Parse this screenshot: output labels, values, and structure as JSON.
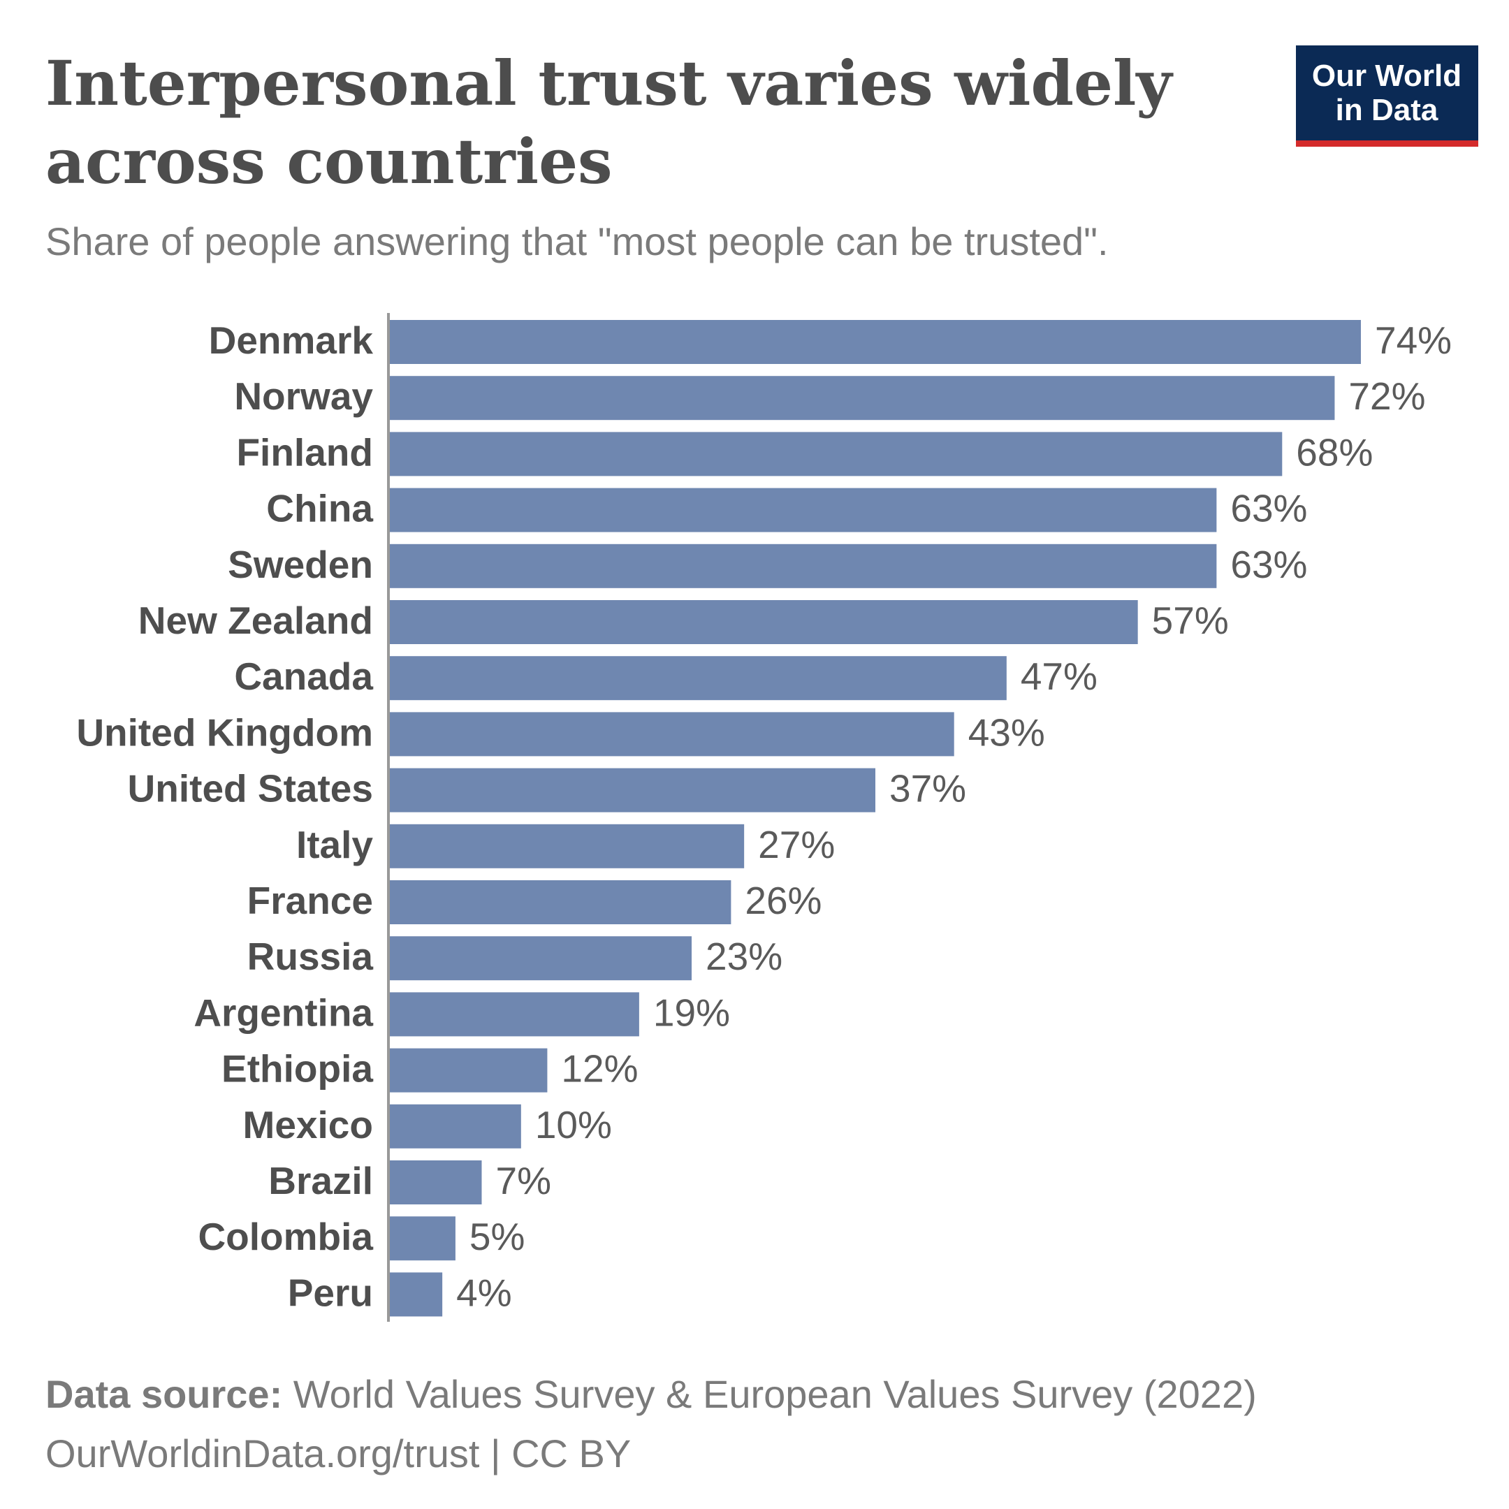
{
  "chart_data": {
    "type": "bar",
    "orientation": "horizontal",
    "title": [
      "Interpersonal trust varies widely",
      "across countries"
    ],
    "subtitle": "Share of people answering that \"most people can be trusted\".",
    "logo": [
      "Our World",
      "in Data"
    ],
    "categories": [
      "Denmark",
      "Norway",
      "Finland",
      "China",
      "Sweden",
      "New Zealand",
      "Canada",
      "United Kingdom",
      "United States",
      "Italy",
      "France",
      "Russia",
      "Argentina",
      "Ethiopia",
      "Mexico",
      "Brazil",
      "Colombia",
      "Peru"
    ],
    "values": [
      74,
      72,
      68,
      63,
      63,
      57,
      47,
      43,
      37,
      27,
      26,
      23,
      19,
      12,
      10,
      7,
      5,
      4
    ],
    "value_labels": [
      "74%",
      "72%",
      "68%",
      "63%",
      "63%",
      "57%",
      "47%",
      "43%",
      "37%",
      "27%",
      "26%",
      "23%",
      "19%",
      "12%",
      "10%",
      "7%",
      "5%",
      "4%"
    ],
    "color": "#6f87b0",
    "source_label": "Data source:",
    "source": "World Values Survey & European Values Survey (2022)",
    "footer": "OurWorldinData.org/trust | CC BY"
  }
}
